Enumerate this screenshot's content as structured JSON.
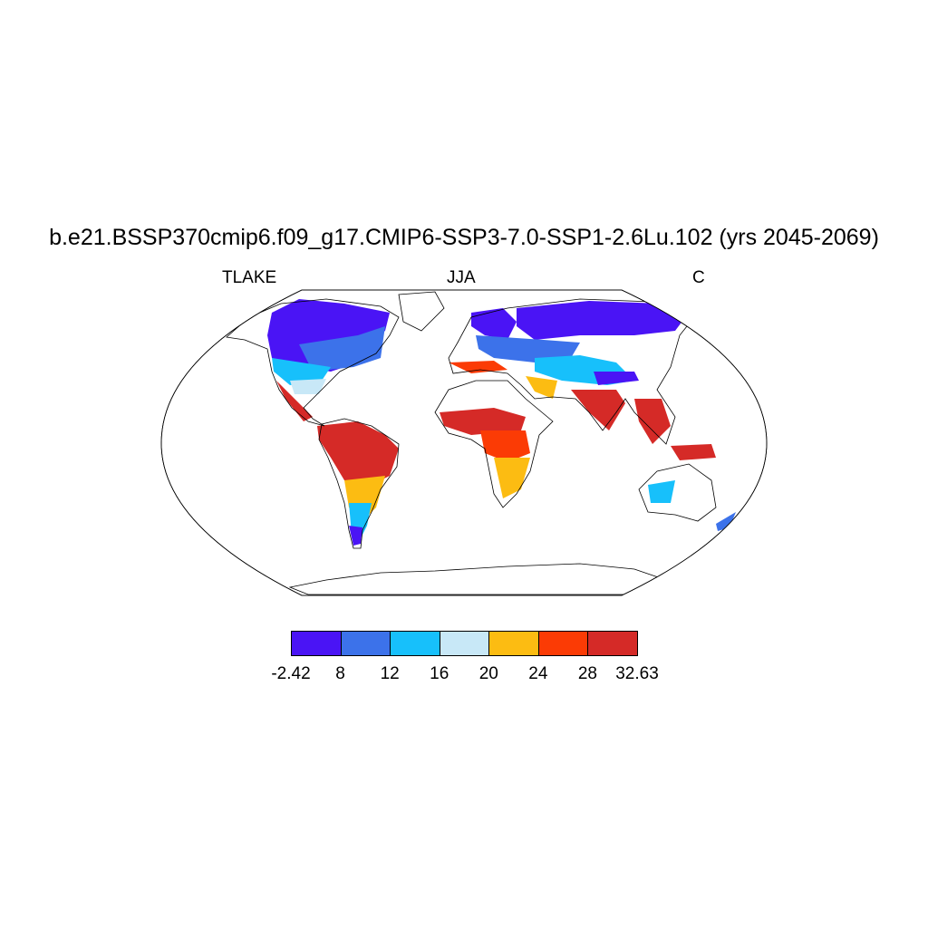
{
  "title": "b.e21.BSSP370cmip6.f09_g17.CMIP6-SSP3-7.0-SSP1-2.6Lu.102 (yrs 2045-2069)",
  "left_label": "TLAKE",
  "center_label": "JJA",
  "right_label": "C",
  "colorbar": {
    "colors": [
      "#4a14f5",
      "#3c72ea",
      "#17c0fb",
      "#c8e8f7",
      "#fcbc12",
      "#fb3b05",
      "#d52a27"
    ],
    "labels": [
      "-2.42",
      "8",
      "12",
      "16",
      "20",
      "24",
      "28",
      "32.63"
    ]
  }
}
